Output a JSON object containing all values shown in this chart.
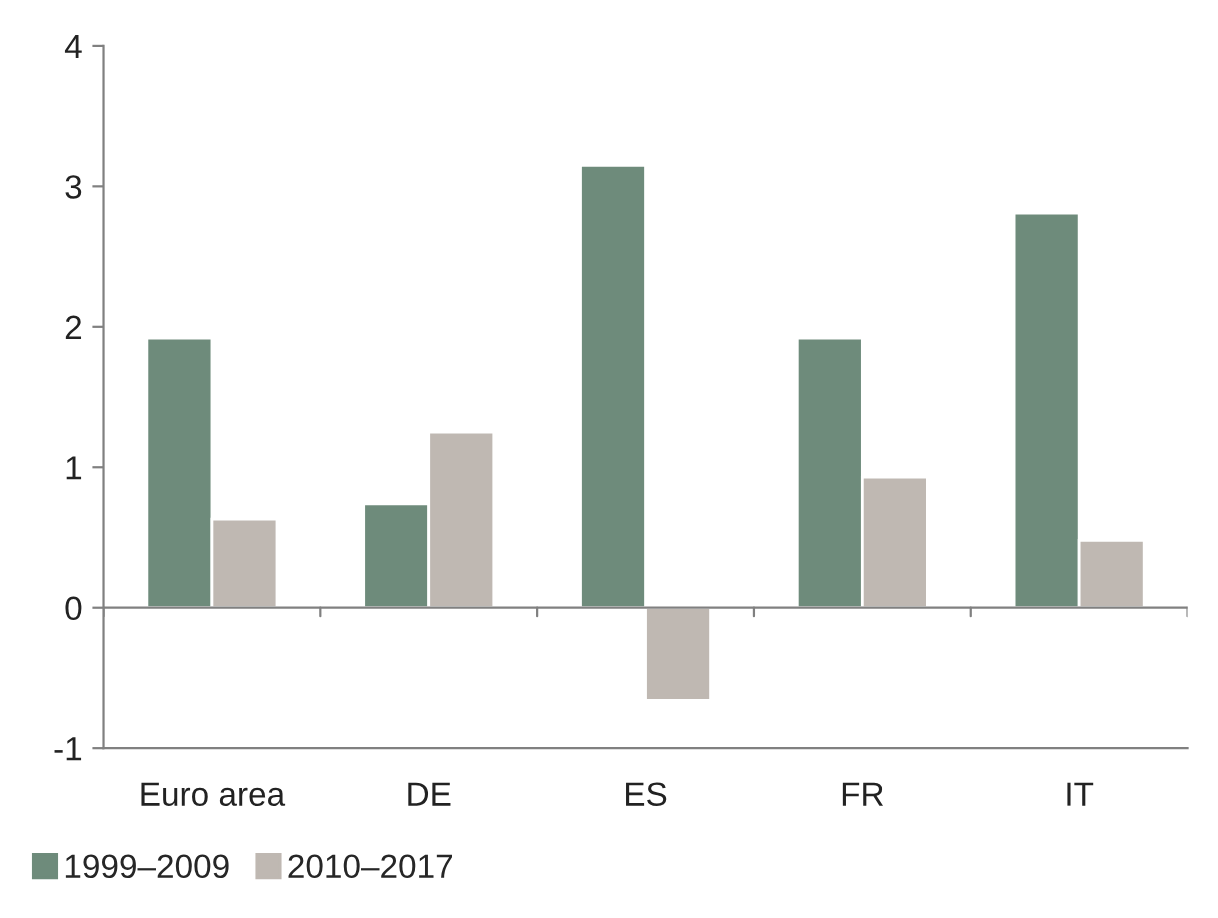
{
  "chart_data": {
    "type": "bar",
    "categories": [
      "Euro area",
      "DE",
      "ES",
      "FR",
      "IT"
    ],
    "series": [
      {
        "name": "1999–2009",
        "color": "#6e8b7b",
        "values": [
          1.92,
          0.74,
          3.15,
          1.92,
          2.81
        ]
      },
      {
        "name": "2010–2017",
        "color": "#bfb8b2",
        "values": [
          0.63,
          1.25,
          -0.66,
          0.93,
          0.48
        ]
      }
    ],
    "ylim": [
      -1,
      4
    ],
    "yticks": [
      -1,
      0,
      1,
      2,
      3,
      4
    ],
    "grid": false,
    "legend": "bottom left",
    "ref_lines": [
      {
        "axis": "y",
        "value": 0,
        "color": "#808080"
      }
    ]
  }
}
